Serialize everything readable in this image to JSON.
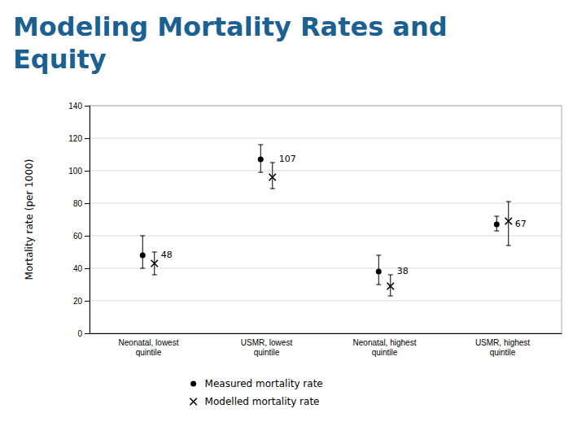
{
  "chart_data": {
    "type": "errorbar",
    "title": "Modeling Mortality Rates and\nEquity",
    "ylabel": "Mortality rate (per 1000)",
    "categories": [
      "Neonatal, lowest\nquintile",
      "USMR, lowest\nquintile",
      "Neonatal, highest\nquintile",
      "USMR, highest\nquintile"
    ],
    "series": [
      {
        "name": "Measured mortality rate",
        "color": "#000000",
        "marker": "circle",
        "data_labels": true,
        "values": [
          48,
          107,
          38,
          67
        ],
        "ci_low": [
          40,
          99,
          30,
          63
        ],
        "ci_high": [
          60,
          116,
          48,
          72
        ]
      },
      {
        "name": "Modelled mortality rate",
        "color": "#000000",
        "marker": "x",
        "data_labels": false,
        "values": [
          43,
          96,
          29,
          69
        ],
        "ci_low": [
          36,
          89,
          23,
          54
        ],
        "ci_high": [
          50,
          105,
          36,
          81
        ]
      }
    ],
    "ylim": [
      0,
      140
    ],
    "yticks": [
      0,
      20,
      40,
      60,
      80,
      100,
      120,
      140
    ],
    "grid": true
  }
}
